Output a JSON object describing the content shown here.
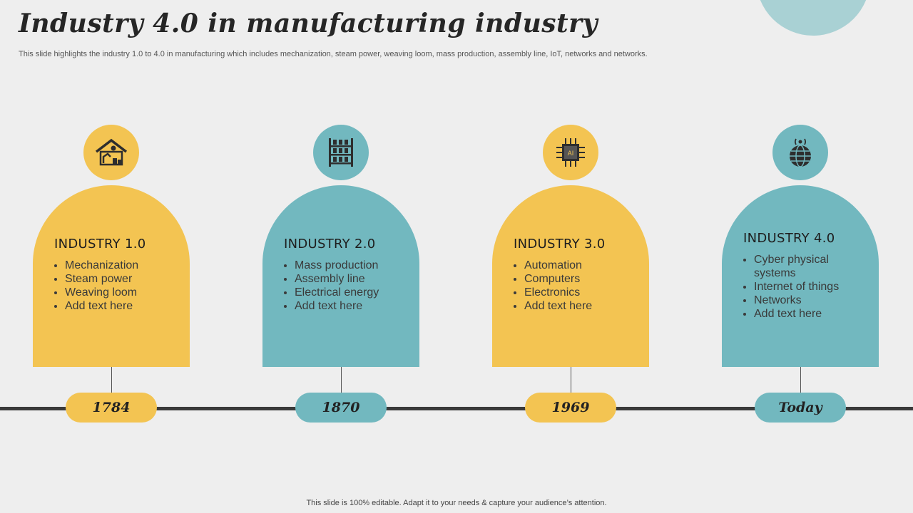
{
  "slide": {
    "title": "Industry 4.0 in manufacturing industry",
    "subtitle": "This slide highlights the industry 1.0 to  4.0 in manufacturing which includes mechanization, steam power, weaving loom, mass production, assembly line, IoT, networks and networks.",
    "footer": "This slide is 100% editable. Adapt it to your needs & capture your audience’s attention."
  },
  "colors": {
    "yellow": "#f3c452",
    "teal": "#72b8bf",
    "line": "#3a3a3a"
  },
  "stages": [
    {
      "title": "INDUSTRY 1.0",
      "icon": "factory-icon",
      "year": "1784",
      "bullets": [
        "Mechanization",
        "Steam power",
        "Weaving loom",
        "Add text here"
      ]
    },
    {
      "title": "INDUSTRY 2.0",
      "icon": "rack-shelves-icon",
      "year": "1870",
      "bullets": [
        "Mass production",
        "Assembly line",
        "Electrical energy",
        "Add text here"
      ]
    },
    {
      "title": "INDUSTRY 3.0",
      "icon": "ai-chip-icon",
      "chip_label": "AI",
      "year": "1969",
      "bullets": [
        "Automation",
        "Computers",
        "Electronics",
        "Add text here"
      ]
    },
    {
      "title": "INDUSTRY 4.0",
      "icon": "globe-signal-icon",
      "year": "Today",
      "bullets": [
        "Cyber physical systems",
        "Internet  of things",
        "Networks",
        "Add text here"
      ]
    }
  ]
}
